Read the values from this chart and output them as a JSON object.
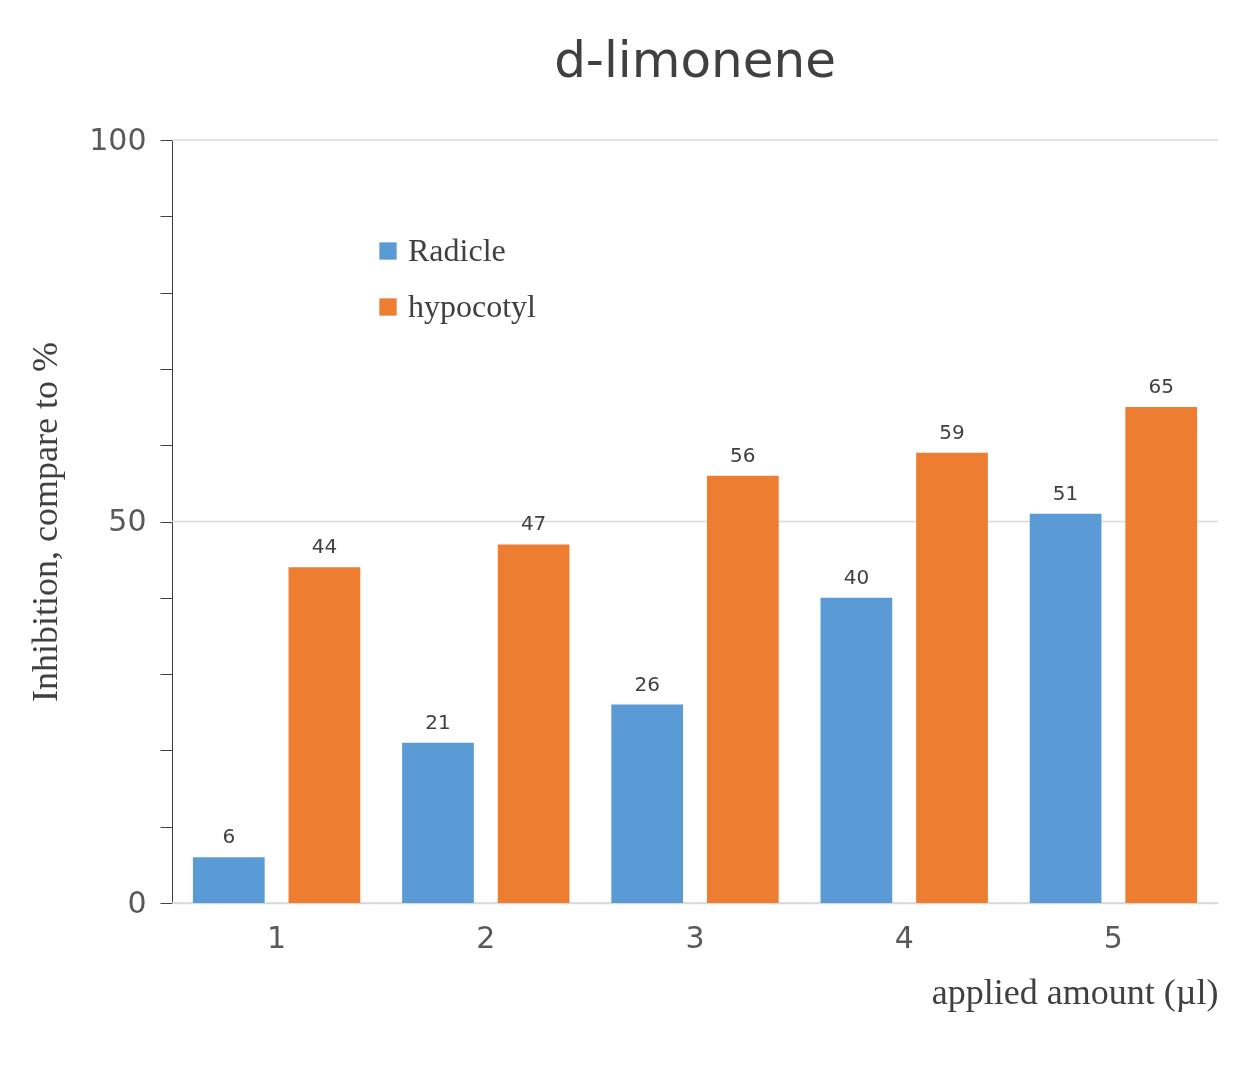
{
  "chart_data": {
    "type": "bar",
    "title": "d-limonene",
    "xlabel": "applied amount (µl)",
    "ylabel": "Inhibition, compare to %",
    "categories": [
      "1",
      "2",
      "3",
      "4",
      "5"
    ],
    "series": [
      {
        "name": "Radicle",
        "color": "#5b9bd5",
        "values": [
          6,
          21,
          26,
          40,
          51
        ]
      },
      {
        "name": "hypocotyl",
        "color": "#ed7d31",
        "values": [
          44,
          47,
          56,
          59,
          65
        ]
      }
    ],
    "ylim": [
      0,
      100
    ],
    "yticks": [
      0,
      {
        "value": 10,
        "label": null
      },
      {
        "value": 20,
        "label": null
      },
      {
        "value": 30,
        "label": null
      },
      {
        "value": 40,
        "label": null
      },
      50,
      {
        "value": 60,
        "label": null
      },
      {
        "value": 70,
        "label": null
      },
      {
        "value": 80,
        "label": null
      },
      {
        "value": 90,
        "label": null
      },
      100
    ],
    "grid": "y",
    "legend": "top left",
    "data_labels": true
  }
}
